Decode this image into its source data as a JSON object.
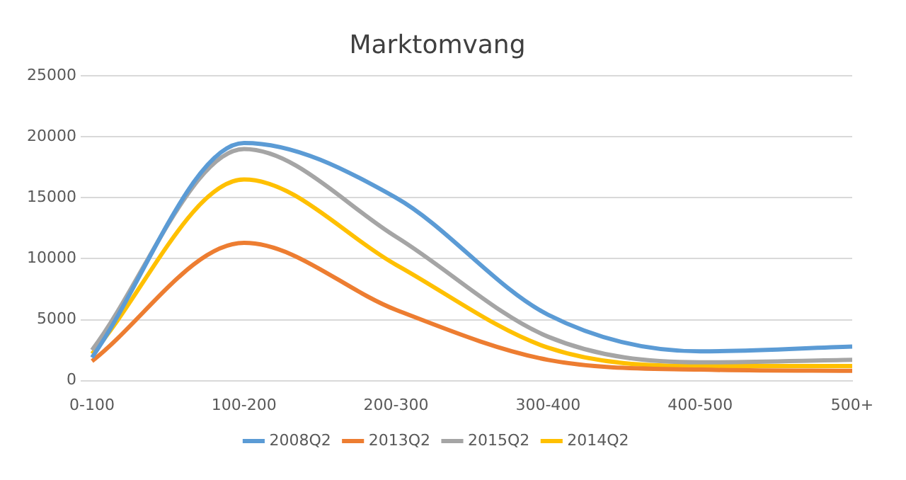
{
  "chart_data": {
    "type": "line",
    "title": "Marktomvang",
    "categories": [
      "0-100",
      "100-200",
      "200-300",
      "300-400",
      "400-500",
      "500+"
    ],
    "series": [
      {
        "name": "2008Q2",
        "color": "#5b9bd5",
        "values": [
          1900,
          19500,
          15000,
          5400,
          2400,
          2800
        ]
      },
      {
        "name": "2013Q2",
        "color": "#ed7d31",
        "values": [
          1600,
          11300,
          5800,
          1700,
          900,
          800
        ]
      },
      {
        "name": "2015Q2",
        "color": "#a5a5a5",
        "values": [
          2500,
          19000,
          11800,
          3600,
          1500,
          1700
        ]
      },
      {
        "name": "2014Q2",
        "color": "#ffc000",
        "values": [
          2200,
          16500,
          9500,
          2700,
          1200,
          1200
        ]
      }
    ],
    "ylim": [
      0,
      25000
    ],
    "yticks": [
      0,
      5000,
      10000,
      15000,
      20000,
      25000
    ],
    "grid": "y",
    "legend": "bottom",
    "marker": "none",
    "line_style": "solid"
  }
}
